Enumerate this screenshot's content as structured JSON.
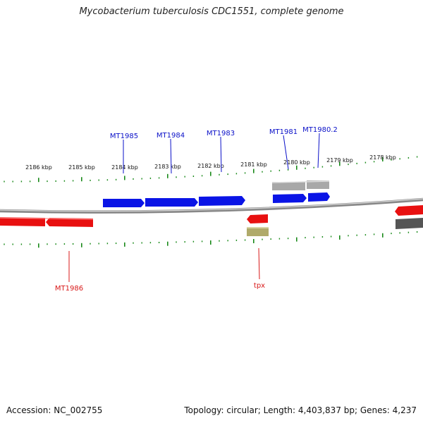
{
  "title": "Mycobacterium tuberculosis CDC1551, complete genome",
  "footer": {
    "accession": "Accession: NC_002755",
    "summary": "Topology: circular; Length: 4,403,837 bp; Genes: 4,237"
  },
  "ruler": {
    "unit": "kbp",
    "labels": [
      "2186 kbp",
      "2185 kbp",
      "2184 kbp",
      "2183 kbp",
      "2182 kbp",
      "2181 kbp",
      "2180 kbp",
      "2179 kbp",
      "2178 kbp"
    ]
  },
  "colors": {
    "forward_cds": "#0a14e6",
    "reverse_cds": "#e81010",
    "forward_other": "#a8a8a8",
    "reverse_other": "#b0aa6a",
    "reverse_dark": "#555555",
    "backbone": "#8a8a8a",
    "tick": "#1a8a1a",
    "forward_label": "#0a10c8",
    "reverse_label": "#d81818"
  },
  "gene_labels": {
    "forward": [
      "MT1985",
      "MT1984",
      "MT1983",
      "MT1981",
      "MT1980.2"
    ],
    "reverse": [
      "MT1986",
      "tpx"
    ]
  }
}
